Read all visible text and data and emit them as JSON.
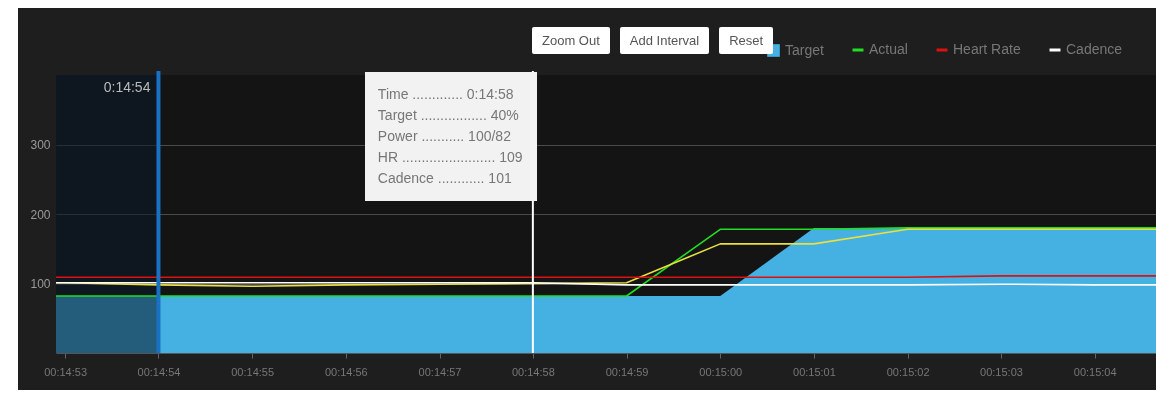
{
  "chart_data": {
    "type": "line",
    "x": [
      0.248029,
      0.248056,
      0.248333,
      0.248611,
      0.248889,
      0.249167,
      0.249444,
      0.249722,
      0.25,
      0.250278,
      0.250556,
      0.250833,
      0.251111,
      0.251293
    ],
    "series": [
      {
        "name": "Target",
        "type": "area",
        "color": "#45b0e2",
        "values": [
          82,
          82,
          82,
          82,
          82,
          82,
          82,
          82,
          82,
          180,
          180,
          180,
          180,
          180
        ]
      },
      {
        "name": "Actual",
        "color": "#22dd22",
        "values": [
          82,
          82,
          82,
          82,
          82,
          82,
          82,
          82,
          178,
          178,
          180,
          180,
          180,
          180
        ]
      },
      {
        "color": "#e8e040",
        "values": [
          101,
          101,
          98,
          96,
          98,
          99,
          100,
          101,
          157,
          157,
          178,
          178,
          178,
          178
        ]
      },
      {
        "name": "Heart Rate",
        "color": "#dd1111",
        "values": [
          109,
          109,
          109,
          109,
          109,
          109,
          109,
          109,
          109,
          109,
          109,
          111,
          111,
          111
        ]
      },
      {
        "name": "Cadence",
        "color": "#ffffff",
        "values": [
          101,
          101,
          101,
          101,
          101,
          101,
          101,
          98,
          98,
          98,
          98,
          99,
          98,
          98
        ]
      }
    ],
    "xlim": [
      0.248029,
      0.251293
    ],
    "ylim": [
      0,
      400
    ],
    "xticks": [
      {
        "value": 0.248056,
        "label": "00:14:53"
      },
      {
        "value": 0.248333,
        "label": "00:14:54"
      },
      {
        "value": 0.248611,
        "label": "00:14:55"
      },
      {
        "value": 0.248889,
        "label": "00:14:56"
      },
      {
        "value": 0.249167,
        "label": "00:14:57"
      },
      {
        "value": 0.249444,
        "label": "00:14:58"
      },
      {
        "value": 0.249722,
        "label": "00:14:59"
      },
      {
        "value": 0.25,
        "label": "00:15:00"
      },
      {
        "value": 0.250278,
        "label": "00:15:01"
      },
      {
        "value": 0.250556,
        "label": "00:15:02"
      },
      {
        "value": 0.250833,
        "label": "00:15:03"
      },
      {
        "value": 0.251111,
        "label": "00:15:04"
      }
    ],
    "yticks": [
      100,
      200,
      300
    ],
    "grid": "y",
    "legend": "top right",
    "ref_lines": [
      {
        "axis": "x",
        "value": 0.248333,
        "label": "0:14:54",
        "color": "#1a70c2"
      },
      {
        "axis": "x",
        "value": 0.249444,
        "color": "#ffffff"
      }
    ],
    "bands": [
      {
        "axis": "x",
        "from": 0.248029,
        "to": 0.248333,
        "color": "#0a1a28"
      }
    ],
    "annotations": [
      "Zoom Out",
      "Add Interval",
      "Reset",
      "Time ............. 0:14:58",
      "Target ................. 40%",
      "Power ........... 100/82",
      "HR ........................ 109",
      "Cadence ............ 101"
    ]
  }
}
